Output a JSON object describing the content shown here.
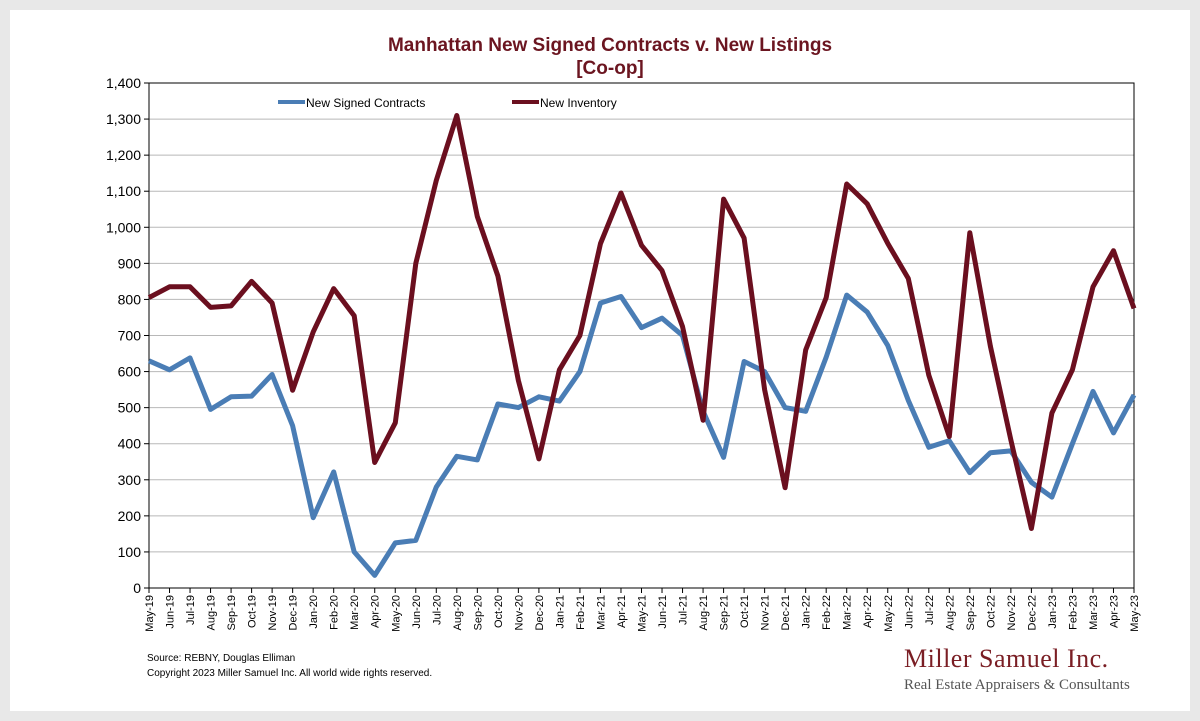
{
  "chart_data": {
    "type": "line",
    "title": "Manhattan New Signed Contracts v. New Listings",
    "subtitle": "[Co-op]",
    "xlabel": "",
    "ylabel": "",
    "ylim": [
      0,
      1400
    ],
    "yticks": [
      0,
      100,
      200,
      300,
      400,
      500,
      600,
      700,
      800,
      900,
      1000,
      1100,
      1200,
      1300,
      1400
    ],
    "ytick_labels": [
      "0",
      "100",
      "200",
      "300",
      "400",
      "500",
      "600",
      "700",
      "800",
      "900",
      "1,000",
      "1,100",
      "1,200",
      "1,300",
      "1,400"
    ],
    "grid": true,
    "legend_position": "top",
    "categories": [
      "May-19",
      "Jun-19",
      "Jul-19",
      "Aug-19",
      "Sep-19",
      "Oct-19",
      "Nov-19",
      "Dec-19",
      "Jan-20",
      "Feb-20",
      "Mar-20",
      "Apr-20",
      "May-20",
      "Jun-20",
      "Jul-20",
      "Aug-20",
      "Sep-20",
      "Oct-20",
      "Nov-20",
      "Dec-20",
      "Jan-21",
      "Feb-21",
      "Mar-21",
      "Apr-21",
      "May-21",
      "Jun-21",
      "Jul-21",
      "Aug-21",
      "Sep-21",
      "Oct-21",
      "Nov-21",
      "Dec-21",
      "Jan-22",
      "Feb-22",
      "Mar-22",
      "Apr-22",
      "May-22",
      "Jun-22",
      "Jul-22",
      "Aug-22",
      "Sep-22",
      "Oct-22",
      "Nov-22",
      "Dec-22",
      "Jan-23",
      "Feb-23",
      "Mar-23",
      "Apr-23",
      "May-23"
    ],
    "series": [
      {
        "name": "New Signed Contracts",
        "color": "#4a7db5",
        "values": [
          630,
          605,
          638,
          495,
          530,
          532,
          592,
          450,
          195,
          322,
          100,
          35,
          125,
          132,
          280,
          365,
          355,
          510,
          500,
          530,
          518,
          600,
          790,
          808,
          722,
          748,
          700,
          490,
          362,
          628,
          600,
          500,
          490,
          640,
          812,
          765,
          672,
          520,
          390,
          408,
          320,
          375,
          380,
          293,
          252,
          400,
          545,
          430,
          535
        ]
      },
      {
        "name": "New Inventory",
        "color": "#6b0f1f",
        "values": [
          805,
          835,
          835,
          778,
          782,
          850,
          790,
          548,
          710,
          830,
          755,
          348,
          458,
          900,
          1130,
          1310,
          1030,
          865,
          575,
          358,
          605,
          700,
          955,
          1095,
          950,
          880,
          725,
          465,
          1078,
          970,
          550,
          278,
          660,
          805,
          1120,
          1065,
          955,
          858,
          590,
          420,
          985,
          670,
          410,
          165,
          485,
          605,
          835,
          935,
          775
        ]
      }
    ]
  },
  "footer": {
    "source": "Source: REBNY, Douglas Elliman",
    "copyright": "Copyright 2023 Miller Samuel Inc.  All world wide rights reserved.",
    "brand": "Miller Samuel Inc.",
    "tagline": "Real Estate Appraisers & Consultants"
  }
}
